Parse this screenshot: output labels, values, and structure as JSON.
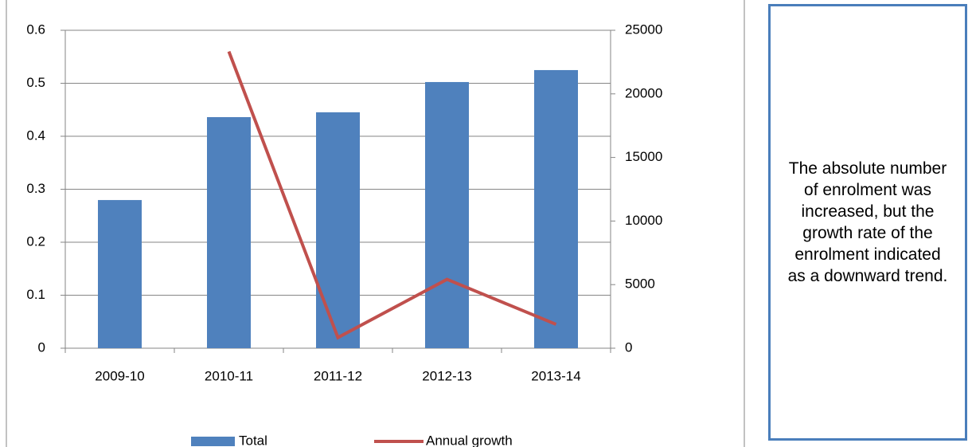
{
  "chart_data": {
    "type": "bar",
    "categories": [
      "2009-10",
      "2010-11",
      "2011-12",
      "2012-13",
      "2013-14"
    ],
    "series": [
      {
        "name": "Total",
        "type": "bar",
        "color": "#4f81bd",
        "axis": "y2",
        "values": [
          11650,
          18170,
          18550,
          20930,
          21870
        ]
      },
      {
        "name": "Annual growth",
        "type": "line",
        "color": "#c0504d",
        "values": [
          null,
          0.56,
          0.02,
          0.13,
          0.045
        ]
      }
    ],
    "ylim": [
      0,
      0.6
    ],
    "yticks": [
      0,
      0.1,
      0.2,
      0.3,
      0.4,
      0.5,
      0.6
    ],
    "y2lim": [
      0,
      25000
    ],
    "y2ticks": [
      0,
      5000,
      10000,
      15000,
      20000,
      25000
    ],
    "grid": true,
    "legend": "bottom"
  },
  "text_box": {
    "text": "The absolute number of enrolment was increased, but the growth rate of the enrolment indicated as a downward trend."
  }
}
